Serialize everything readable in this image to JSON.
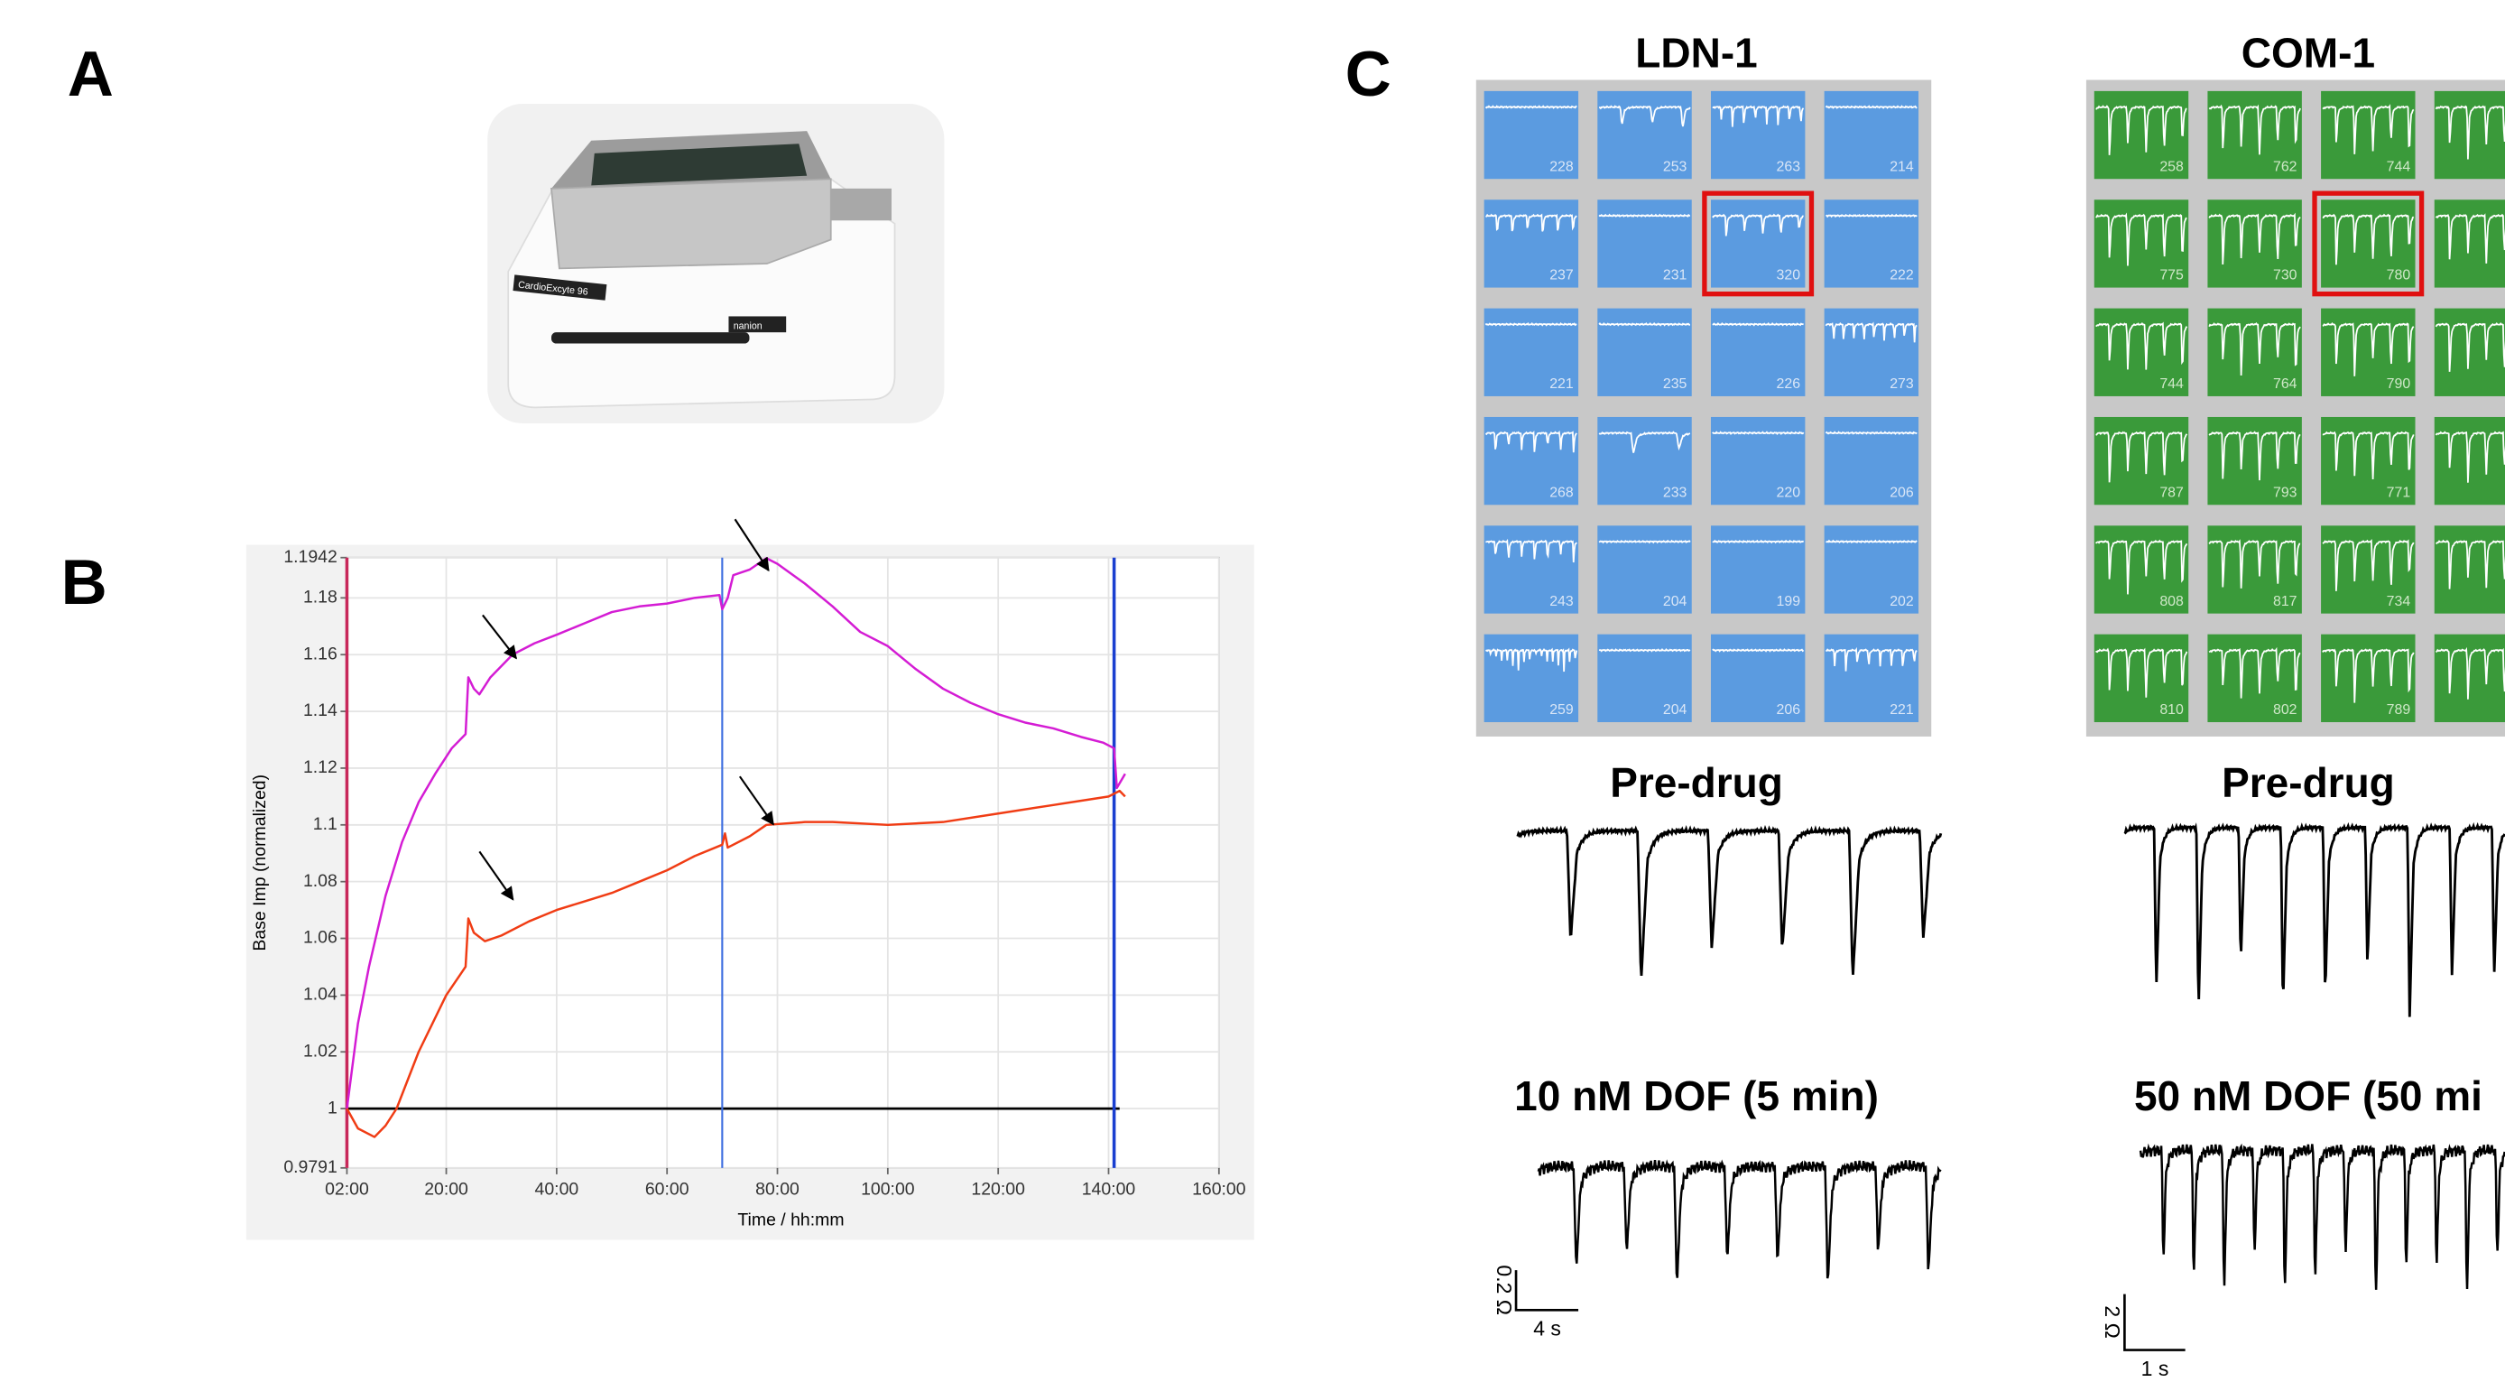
{
  "panels": {
    "a": {
      "label": "A",
      "device_text": "CardioExcyte 96",
      "brand_text": "nanion"
    },
    "b": {
      "label": "B"
    },
    "c": {
      "label": "C",
      "groups": [
        {
          "title": "LDN-1",
          "wells": [
            "228",
            "253",
            "263",
            "214",
            "237",
            "231",
            "320",
            "222",
            "221",
            "235",
            "226",
            "273",
            "268",
            "233",
            "220",
            "206",
            "243",
            "204",
            "199",
            "202",
            "259",
            "204",
            "206",
            "221"
          ],
          "pre_label": "Pre-drug",
          "drug_label": "10 nM DOF (5 min)",
          "scale_y": "0.2 Ω",
          "scale_x": "4 s"
        },
        {
          "title": "COM-1",
          "wells": [
            "258",
            "762",
            "744",
            "775",
            "730",
            "780",
            "744",
            "764",
            "790",
            "787",
            "793",
            "771",
            "808",
            "817",
            "734",
            "810",
            "802",
            "789"
          ],
          "pre_label": "Pre-drug",
          "drug_label": "50 nM DOF (50 mi",
          "scale_y": "2 Ω",
          "scale_x": "1 s"
        }
      ]
    }
  },
  "chart_data": {
    "type": "line",
    "y_label": "Base Imp (normalized)",
    "x_label": "Time / hh:mm",
    "xlim": [
      2,
      160
    ],
    "xticks": [
      {
        "value": 2,
        "label": "02:00"
      },
      {
        "value": 20,
        "label": "20:00"
      },
      {
        "value": 40,
        "label": "40:00"
      },
      {
        "value": 60,
        "label": "60:00"
      },
      {
        "value": 80,
        "label": "80:00"
      },
      {
        "value": 100,
        "label": "100:00"
      },
      {
        "value": 120,
        "label": "120:00"
      },
      {
        "value": 140,
        "label": "140:00"
      },
      {
        "value": 160,
        "label": "160:00"
      }
    ],
    "ylim": [
      0.9791,
      1.1942
    ],
    "yticks": [
      0.9791,
      1,
      1.02,
      1.04,
      1.06,
      1.08,
      1.1,
      1.12,
      1.14,
      1.16,
      1.18,
      1.1942
    ],
    "grid": true,
    "markers": [
      {
        "x": 2,
        "color": "#c8285a"
      },
      {
        "x": 70,
        "color": "#3f6fe0"
      },
      {
        "x": 141,
        "color": "#1a3fd0"
      }
    ],
    "hline": {
      "y": 1,
      "x": [
        2,
        142
      ],
      "color": "#000000"
    },
    "series": [
      {
        "color": "#d41cd4",
        "x": [
          2,
          4,
          6,
          9,
          12,
          15,
          18,
          21,
          23.5,
          24,
          25,
          26,
          28,
          32,
          36,
          40,
          45,
          50,
          55,
          60,
          65,
          69.5,
          70,
          71,
          72,
          75,
          78,
          80,
          85,
          90,
          95,
          100,
          105,
          110,
          115,
          120,
          125,
          130,
          135,
          139,
          141,
          141.5,
          143
        ],
        "values": [
          1.0,
          1.03,
          1.05,
          1.075,
          1.094,
          1.108,
          1.118,
          1.127,
          1.132,
          1.152,
          1.148,
          1.146,
          1.152,
          1.16,
          1.164,
          1.167,
          1.171,
          1.175,
          1.177,
          1.178,
          1.18,
          1.181,
          1.176,
          1.18,
          1.188,
          1.19,
          1.194,
          1.192,
          1.185,
          1.177,
          1.168,
          1.163,
          1.155,
          1.148,
          1.143,
          1.139,
          1.136,
          1.134,
          1.131,
          1.129,
          1.127,
          1.113,
          1.118
        ]
      },
      {
        "color": "#f03c14",
        "x": [
          2,
          4,
          7,
          9,
          11,
          15,
          20,
          23.5,
          24,
          25,
          27,
          30,
          35,
          40,
          45,
          50,
          55,
          60,
          65,
          70,
          70.5,
          71,
          75,
          78,
          85,
          90,
          100,
          110,
          120,
          130,
          140,
          142,
          143
        ],
        "values": [
          1.0,
          0.993,
          0.99,
          0.994,
          1.0,
          1.02,
          1.04,
          1.05,
          1.067,
          1.062,
          1.059,
          1.061,
          1.066,
          1.07,
          1.073,
          1.076,
          1.08,
          1.084,
          1.089,
          1.093,
          1.097,
          1.092,
          1.096,
          1.1,
          1.101,
          1.101,
          1.1,
          1.101,
          1.104,
          1.107,
          1.11,
          1.112,
          1.11
        ]
      }
    ]
  }
}
